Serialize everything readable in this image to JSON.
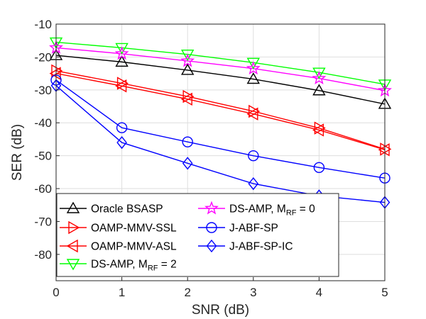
{
  "chart_data": {
    "type": "line",
    "title": "",
    "xlabel": "SNR (dB)",
    "ylabel": "SER (dB)",
    "xlim": [
      0,
      5
    ],
    "ylim": [
      -88,
      -10
    ],
    "xticks": [
      0,
      1,
      2,
      3,
      4,
      5
    ],
    "yticks": [
      -10,
      -20,
      -30,
      -40,
      -50,
      -60,
      -70,
      -80
    ],
    "grid": true,
    "legend_placement": "bottom-left",
    "x": [
      0,
      1,
      2,
      3,
      4,
      5
    ],
    "series": [
      {
        "name": "Oracle BSASP",
        "name_sub": "",
        "name_tail": "",
        "color": "#000000",
        "marker": "triangle-up",
        "values": [
          -19.5,
          -21.5,
          -24,
          -26.7,
          -30.2,
          -34.3
        ]
      },
      {
        "name": "OAMP-MMV-SSL",
        "name_sub": "",
        "name_tail": "",
        "color": "#ff0000",
        "marker": "triangle-right",
        "values": [
          -24.2,
          -28,
          -32,
          -36.5,
          -41.6,
          -48
        ]
      },
      {
        "name": "OAMP-MMV-ASL",
        "name_sub": "",
        "name_tail": "",
        "color": "#ff0000",
        "marker": "triangle-left",
        "values": [
          -25,
          -28.8,
          -32.8,
          -37.3,
          -42.2,
          -48.2
        ]
      },
      {
        "name": "DS-AMP, M",
        "name_sub": "RF",
        "name_tail": " = 2",
        "color": "#00ff00",
        "marker": "triangle-down",
        "values": [
          -15.5,
          -17.2,
          -19.2,
          -21.7,
          -24.7,
          -28.3
        ]
      },
      {
        "name": "DS-AMP, M",
        "name_sub": "RF",
        "name_tail": " = 0",
        "color": "#ff00ff",
        "marker": "star",
        "values": [
          -17.2,
          -19,
          -21.2,
          -23.5,
          -26.5,
          -30.2
        ]
      },
      {
        "name": "J-ABF-SP",
        "name_sub": "",
        "name_tail": "",
        "color": "#0000ff",
        "marker": "circle",
        "values": [
          -27,
          -41.5,
          -45.8,
          -50,
          -53.6,
          -56.8
        ]
      },
      {
        "name": "J-ABF-SP-IC",
        "name_sub": "",
        "name_tail": "",
        "color": "#0000ff",
        "marker": "diamond",
        "values": [
          -28.7,
          -46,
          -52.3,
          -58.5,
          -62.2,
          -64.2
        ]
      }
    ]
  }
}
